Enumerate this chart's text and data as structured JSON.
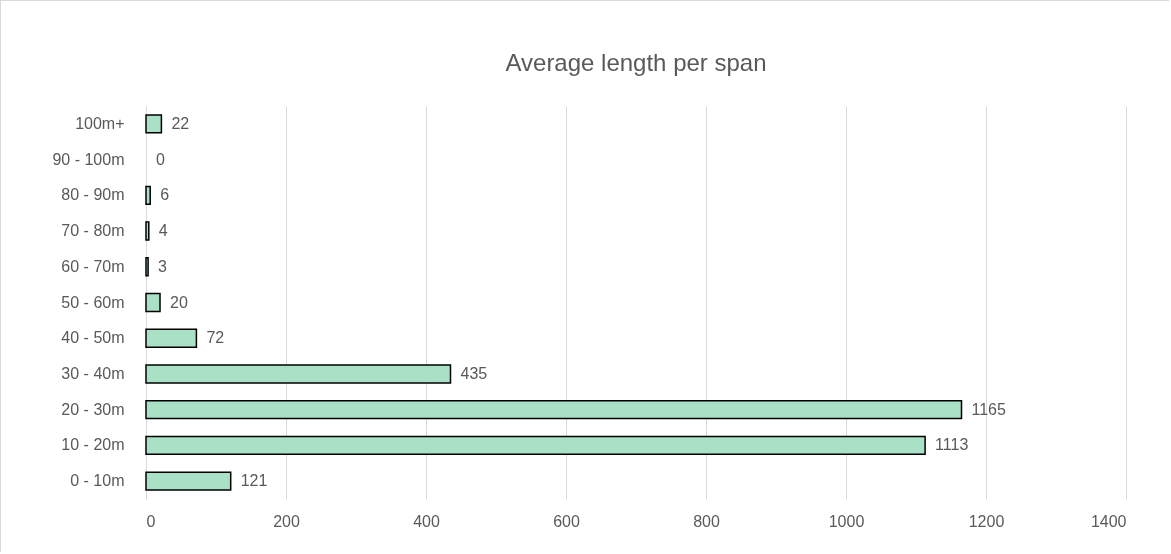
{
  "chart_data": {
    "type": "bar",
    "orientation": "horizontal",
    "title": "Average length per span",
    "categories": [
      "100m+",
      "90 - 100m",
      "80 - 90m",
      "70 - 80m",
      "60 - 70m",
      "50 - 60m",
      "40 - 50m",
      "30 - 40m",
      "20 - 30m",
      "10 - 20m",
      "0 - 10m"
    ],
    "values": [
      22,
      0,
      6,
      4,
      3,
      20,
      72,
      435,
      1165,
      1113,
      121
    ],
    "color": "#a9e1c6",
    "xlim": [
      0,
      1400
    ],
    "xticks": [
      0,
      200,
      400,
      600,
      800,
      1000,
      1200,
      1400
    ],
    "grid": "x",
    "data_labels": true
  }
}
